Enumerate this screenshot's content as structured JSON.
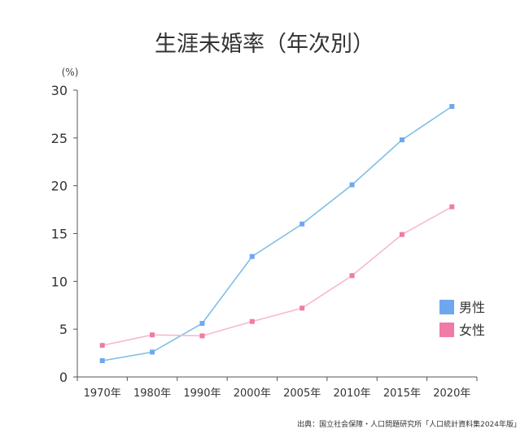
{
  "chart_data": {
    "type": "line",
    "title": "生涯未婚率（年次別）",
    "unit_label": "(%)",
    "xlabel": "",
    "ylabel": "",
    "categories": [
      "1970年",
      "1980年",
      "1990年",
      "2000年",
      "2005年",
      "2010年",
      "2015年",
      "2020年"
    ],
    "ylim": [
      0,
      30
    ],
    "yticks": [
      "0",
      "5",
      "10",
      "15",
      "20",
      "25",
      "30"
    ],
    "grid": false,
    "legend_position": "right",
    "series": [
      {
        "name": "男性",
        "color": "#7fbfe6",
        "marker_color": "#6fa7ef",
        "values": [
          1.7,
          2.6,
          5.6,
          12.6,
          16.0,
          20.1,
          24.8,
          28.3
        ]
      },
      {
        "name": "女性",
        "color": "#f7b8d0",
        "marker_color": "#f07aa8",
        "values": [
          3.3,
          4.4,
          4.3,
          5.8,
          7.2,
          10.6,
          14.9,
          17.8
        ]
      }
    ],
    "source": "出典：国立社会保障・人口問題研究所「人口統計資料集2024年版」"
  }
}
